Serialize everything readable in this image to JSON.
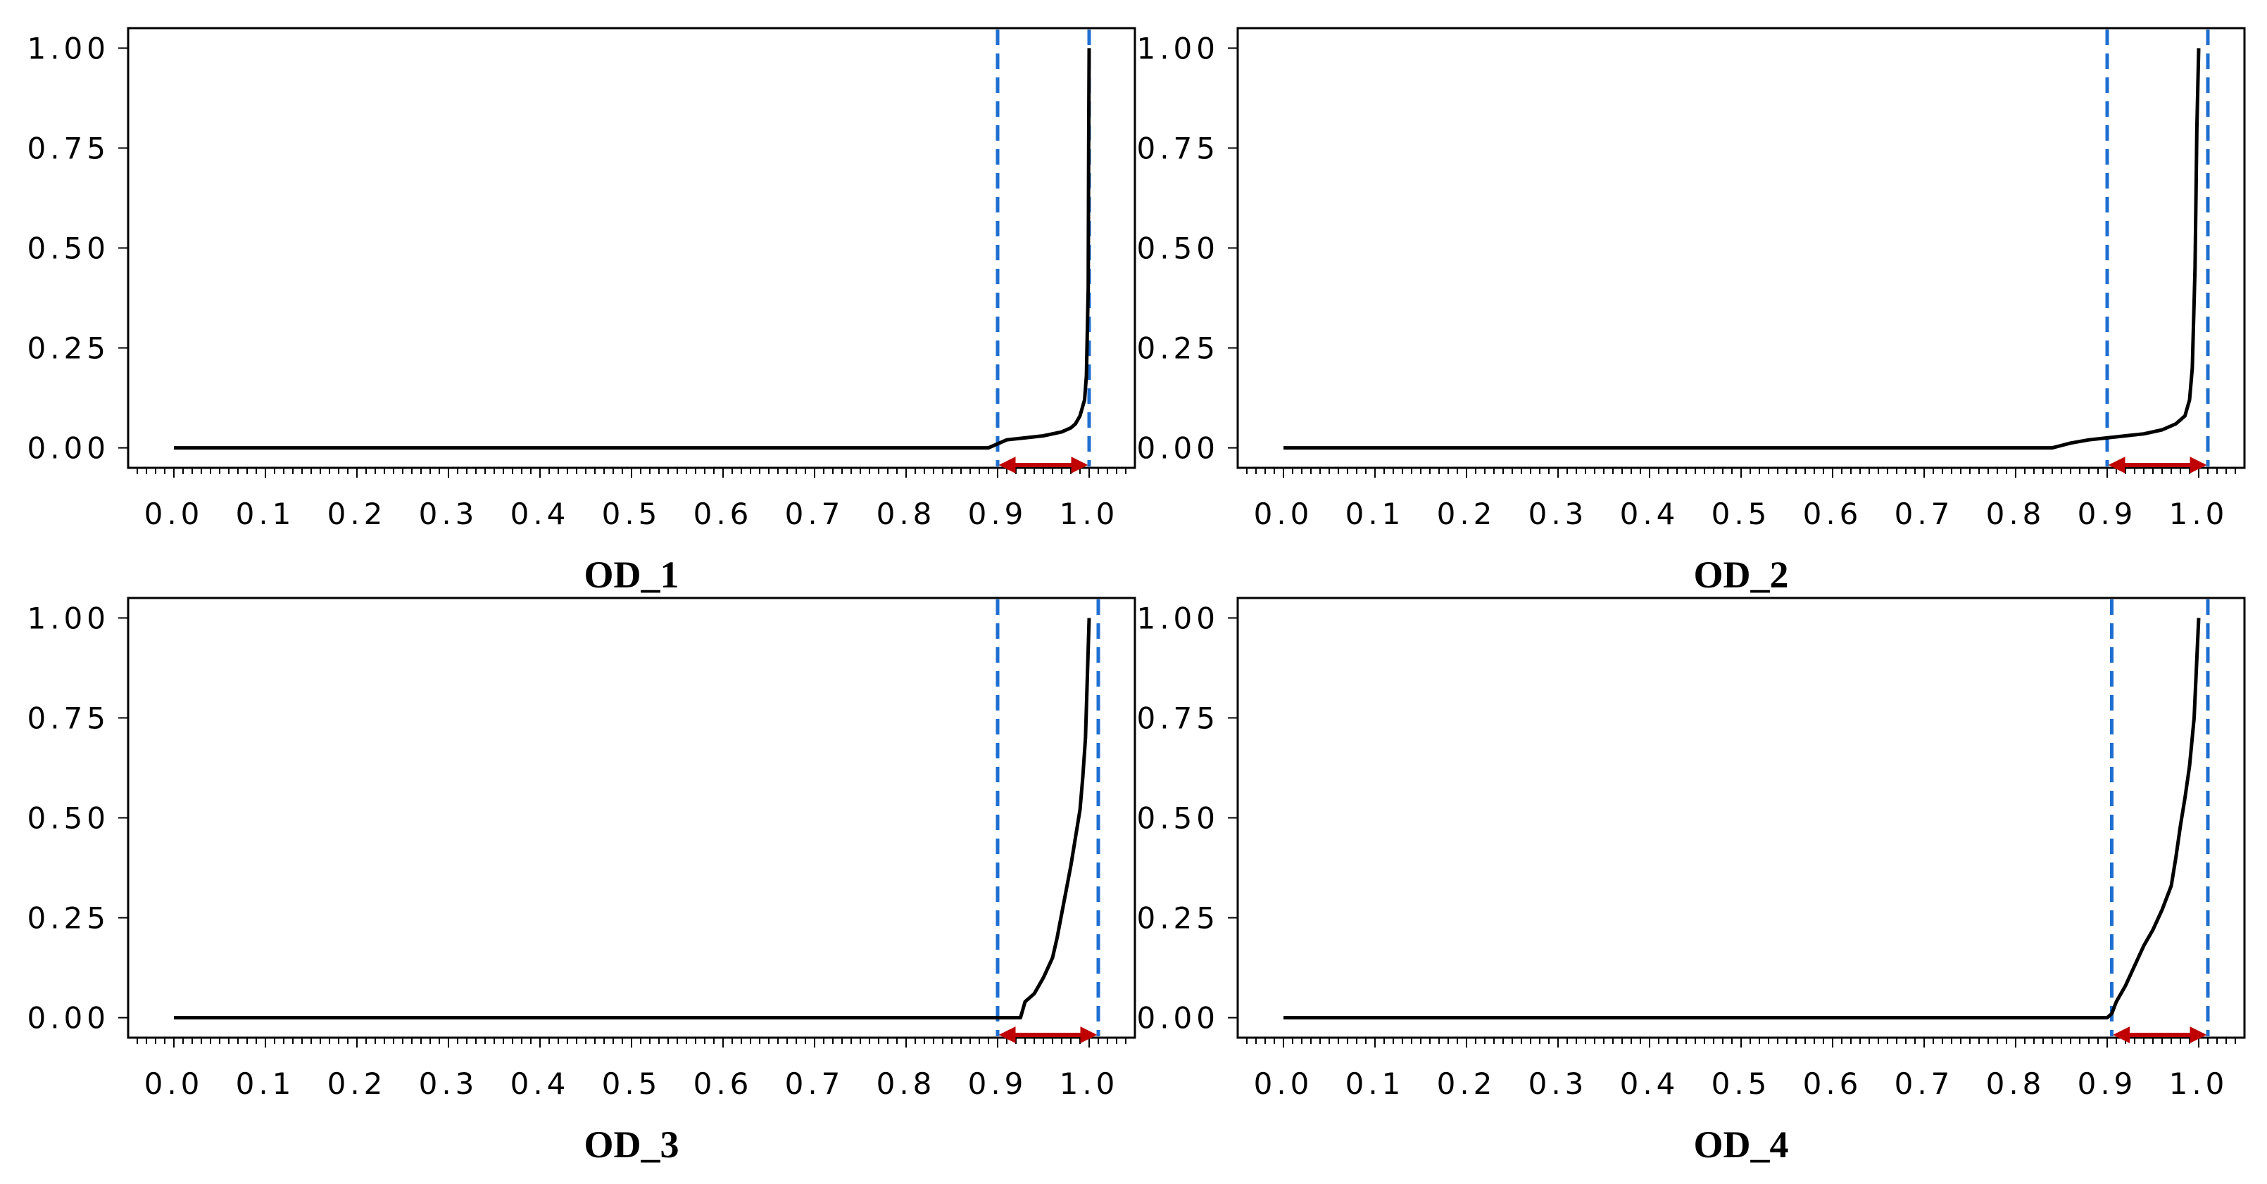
{
  "colors": {
    "curve": "#000000",
    "threshold_line": "#1f6fd1",
    "arrow": "#c00000",
    "frame": "#000000"
  },
  "chart_data": [
    {
      "type": "line",
      "title": "OD_1",
      "xlim": [
        -0.05,
        1.05
      ],
      "ylim": [
        -0.05,
        1.05
      ],
      "xticks": [
        "0.0",
        "0.1",
        "0.2",
        "0.3",
        "0.4",
        "0.5",
        "0.6",
        "0.7",
        "0.8",
        "0.9",
        "1.0"
      ],
      "yticks": [
        "0.00",
        "0.25",
        "0.50",
        "0.75",
        "1.00"
      ],
      "series": [
        {
          "x": [
            0.0,
            0.89,
            0.9,
            0.91,
            0.93,
            0.95,
            0.97,
            0.98,
            0.985,
            0.99,
            0.995,
            0.997,
            0.999,
            0.9995,
            1.0
          ],
          "y": [
            0.0,
            0.0,
            0.01,
            0.02,
            0.025,
            0.03,
            0.04,
            0.05,
            0.06,
            0.08,
            0.12,
            0.18,
            0.4,
            0.75,
            1.0
          ]
        }
      ],
      "vlines": [
        0.9,
        1.0
      ],
      "arrow": [
        0.905,
        0.995
      ]
    },
    {
      "type": "line",
      "title": "OD_2",
      "xlim": [
        -0.05,
        1.05
      ],
      "ylim": [
        -0.05,
        1.05
      ],
      "xticks": [
        "0.0",
        "0.1",
        "0.2",
        "0.3",
        "0.4",
        "0.5",
        "0.6",
        "0.7",
        "0.8",
        "0.9",
        "1.0"
      ],
      "yticks": [
        "0.00",
        "0.25",
        "0.50",
        "0.75",
        "1.00"
      ],
      "series": [
        {
          "x": [
            0.0,
            0.84,
            0.86,
            0.88,
            0.9,
            0.92,
            0.94,
            0.96,
            0.975,
            0.985,
            0.99,
            0.993,
            0.996,
            0.998,
            1.0
          ],
          "y": [
            0.0,
            0.0,
            0.012,
            0.02,
            0.025,
            0.03,
            0.035,
            0.045,
            0.06,
            0.08,
            0.12,
            0.2,
            0.45,
            0.8,
            1.0
          ]
        }
      ],
      "vlines": [
        0.9,
        1.01
      ],
      "arrow": [
        0.905,
        1.005
      ]
    },
    {
      "type": "line",
      "title": "OD_3",
      "xlim": [
        -0.05,
        1.05
      ],
      "ylim": [
        -0.05,
        1.05
      ],
      "xticks": [
        "0.0",
        "0.1",
        "0.2",
        "0.3",
        "0.4",
        "0.5",
        "0.6",
        "0.7",
        "0.8",
        "0.9",
        "1.0"
      ],
      "yticks": [
        "0.00",
        "0.25",
        "0.50",
        "0.75",
        "1.00"
      ],
      "series": [
        {
          "x": [
            0.0,
            0.925,
            0.93,
            0.94,
            0.95,
            0.96,
            0.965,
            0.97,
            0.975,
            0.98,
            0.985,
            0.99,
            0.993,
            0.996,
            0.998,
            1.0
          ],
          "y": [
            0.0,
            0.0,
            0.04,
            0.06,
            0.1,
            0.15,
            0.2,
            0.26,
            0.32,
            0.38,
            0.45,
            0.52,
            0.6,
            0.7,
            0.85,
            1.0
          ]
        }
      ],
      "vlines": [
        0.9,
        1.01
      ],
      "arrow": [
        0.905,
        1.005
      ]
    },
    {
      "type": "line",
      "title": "OD_4",
      "xlim": [
        -0.05,
        1.05
      ],
      "ylim": [
        -0.05,
        1.05
      ],
      "xticks": [
        "0.0",
        "0.1",
        "0.2",
        "0.3",
        "0.4",
        "0.5",
        "0.6",
        "0.7",
        "0.8",
        "0.9",
        "1.0"
      ],
      "yticks": [
        "0.00",
        "0.25",
        "0.50",
        "0.75",
        "1.00"
      ],
      "series": [
        {
          "x": [
            0.0,
            0.9,
            0.905,
            0.91,
            0.92,
            0.93,
            0.94,
            0.95,
            0.96,
            0.97,
            0.975,
            0.98,
            0.985,
            0.99,
            0.995,
            1.0
          ],
          "y": [
            0.0,
            0.0,
            0.01,
            0.04,
            0.08,
            0.13,
            0.18,
            0.22,
            0.27,
            0.33,
            0.4,
            0.48,
            0.55,
            0.63,
            0.75,
            1.0
          ]
        }
      ],
      "vlines": [
        0.905,
        1.01
      ],
      "arrow": [
        0.91,
        1.005
      ]
    }
  ]
}
